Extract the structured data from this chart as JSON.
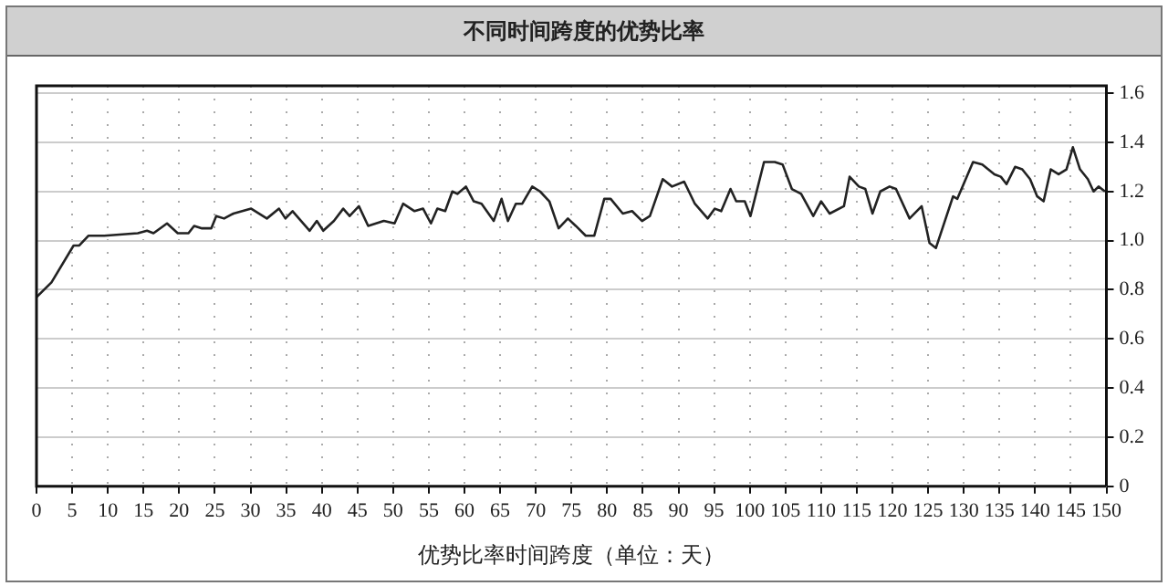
{
  "chart_data": {
    "type": "line",
    "title": "不同时间跨度的优势比率",
    "xlabel": "优势比率时间跨度（单位：天）",
    "series": [
      {
        "color": "#222222",
        "x": [
          0,
          2.1,
          5.2,
          6,
          7.3,
          9.5,
          14.2,
          15.5,
          16.4,
          18.3,
          19.8,
          21.3,
          22.1,
          23.2,
          24.5,
          25.2,
          26.3,
          27.6,
          30.1,
          32.3,
          34,
          34.9,
          35.9,
          38.3,
          39.3,
          40.2,
          41.7,
          43,
          43.9,
          45.2,
          46.5,
          48.7,
          50.2,
          51.4,
          53,
          54.2,
          55.3,
          56.2,
          57.3,
          58.3,
          59,
          60.2,
          61.3,
          62.4,
          64.1,
          65.2,
          66.1,
          67.2,
          68.1,
          69.5,
          70.6,
          71.9,
          73.2,
          74.5,
          75.6,
          77,
          78.2,
          79.6,
          80.5,
          82.2,
          83.5,
          84.9,
          86,
          87.8,
          89.1,
          90.8,
          92.3,
          94.1,
          95.1,
          96,
          97.3,
          98.1,
          99.3,
          100.1,
          102,
          103.5,
          104.6,
          105.9,
          107.2,
          108.9,
          110,
          111.2,
          113.2,
          114,
          115.3,
          116.2,
          117.2,
          118.3,
          119.6,
          120.5,
          122.4,
          124.1,
          125.2,
          126.1,
          128.5,
          129.1,
          131.3,
          132.6,
          134.3,
          135.2,
          136,
          137.2,
          138.2,
          139.3,
          140.3,
          141.2,
          142.2,
          143.3,
          144.4,
          145.3,
          146.3,
          147.4,
          148.2,
          148.9,
          149.8
        ],
        "values": [
          0.77,
          0.83,
          0.98,
          0.98,
          1.02,
          1.02,
          1.03,
          1.04,
          1.03,
          1.07,
          1.03,
          1.03,
          1.06,
          1.05,
          1.05,
          1.1,
          1.09,
          1.11,
          1.13,
          1.09,
          1.13,
          1.09,
          1.12,
          1.04,
          1.08,
          1.04,
          1.08,
          1.13,
          1.1,
          1.14,
          1.06,
          1.08,
          1.07,
          1.15,
          1.12,
          1.13,
          1.07,
          1.13,
          1.12,
          1.2,
          1.19,
          1.22,
          1.16,
          1.15,
          1.08,
          1.17,
          1.08,
          1.15,
          1.15,
          1.22,
          1.2,
          1.16,
          1.05,
          1.09,
          1.06,
          1.02,
          1.02,
          1.17,
          1.17,
          1.11,
          1.12,
          1.08,
          1.1,
          1.25,
          1.22,
          1.24,
          1.15,
          1.09,
          1.13,
          1.12,
          1.21,
          1.16,
          1.16,
          1.1,
          1.32,
          1.32,
          1.31,
          1.21,
          1.19,
          1.1,
          1.16,
          1.11,
          1.14,
          1.26,
          1.22,
          1.21,
          1.11,
          1.2,
          1.22,
          1.21,
          1.09,
          1.14,
          0.99,
          0.97,
          1.18,
          1.17,
          1.32,
          1.31,
          1.27,
          1.26,
          1.23,
          1.3,
          1.29,
          1.25,
          1.18,
          1.16,
          1.29,
          1.27,
          1.29,
          1.38,
          1.29,
          1.25,
          1.2,
          1.22,
          1.2
        ]
      }
    ],
    "xlim": [
      0,
      150
    ],
    "xticks": [
      0,
      5,
      10,
      15,
      20,
      25,
      30,
      35,
      40,
      45,
      50,
      55,
      60,
      65,
      70,
      75,
      80,
      85,
      90,
      95,
      100,
      105,
      110,
      115,
      120,
      125,
      130,
      135,
      140,
      145,
      150
    ],
    "ylim": [
      0,
      1.63
    ],
    "yticks": [
      0,
      0.2,
      0.4,
      0.6,
      0.8,
      {
        "value": 1,
        "label": "1.0"
      },
      1.2,
      1.4,
      1.6
    ],
    "grid": true,
    "legend": false,
    "marker": "none",
    "line_style": "solid"
  }
}
